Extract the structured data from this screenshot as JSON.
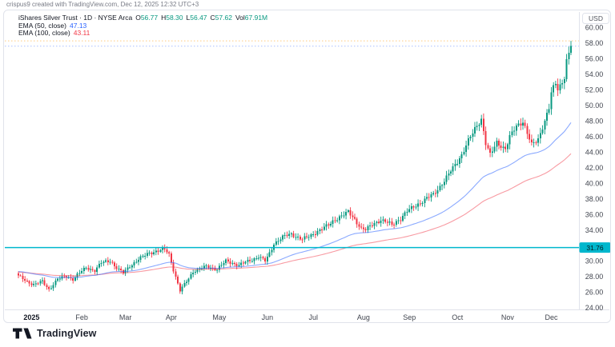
{
  "attribution": "crispus9 created with TradingView.com, Dec 12, 2025 12:32 UTC+3",
  "legend": {
    "title": "iShares Silver Trust · 1D · NYSE Arca",
    "ohlc": [
      {
        "k": "O",
        "v": "56.77"
      },
      {
        "k": "H",
        "v": "58.30"
      },
      {
        "k": "L",
        "v": "56.47"
      },
      {
        "k": "C",
        "v": "57.62"
      },
      {
        "k": "Vol",
        "v": "67.91M"
      }
    ],
    "ema50_label": "EMA (50, close)",
    "ema50_value": "47.13",
    "ema100_label": "EMA (100, close)",
    "ema100_value": "43.11"
  },
  "axis": {
    "currency": "USD",
    "level_tag": "31.76"
  },
  "time_axis": {
    "labels": [
      "2025",
      "Feb",
      "Mar",
      "Apr",
      "May",
      "Jun",
      "Jul",
      "Aug",
      "Sep",
      "Oct",
      "Nov",
      "Dec"
    ]
  },
  "footer": {
    "brand": "TradingView"
  },
  "colors": {
    "up": "#089981",
    "down": "#f23645",
    "ema50": "#2962ff",
    "ema100": "#f23645",
    "level": "#00b7cd",
    "level_text": "#07171b",
    "axis_text": "#41454f",
    "year_text": "#131722",
    "border": "#e0e3eb",
    "close_line": "#2962ff",
    "high_line": "#ff9800"
  },
  "chart_data": {
    "type": "candlestick",
    "symbol": "iShares Silver Trust",
    "interval": "1D",
    "exchange": "NYSE Arca",
    "ylabel": "USD",
    "ylim": [
      24,
      60
    ],
    "y_ticks": [
      60,
      58,
      56,
      54,
      52,
      50,
      48,
      46,
      44,
      42,
      40,
      38,
      36,
      34,
      30,
      28,
      26,
      24
    ],
    "grid": false,
    "level_line": 31.76,
    "close_price_line": 57.62,
    "high_price_line": 58.3,
    "last_ohlc": {
      "open": 56.77,
      "high": 58.3,
      "low": 56.47,
      "close": 57.62
    },
    "volume": "67.91M",
    "ema50_last": 47.13,
    "ema100_last": 43.11,
    "ema_seed": {
      "ema50": 28.7,
      "ema100": 28.6
    },
    "date_range": [
      "2024-12-24",
      "2025-12-12"
    ],
    "anchors": [
      [
        "2024-12-24",
        28.1
      ],
      [
        "2024-12-30",
        27.4
      ],
      [
        "2025-01-02",
        27.0
      ],
      [
        "2025-01-08",
        27.4
      ],
      [
        "2025-01-13",
        26.4
      ],
      [
        "2025-01-17",
        27.7
      ],
      [
        "2025-01-23",
        28.1
      ],
      [
        "2025-01-28",
        27.7
      ],
      [
        "2025-01-31",
        28.5
      ],
      [
        "2025-02-05",
        29.2
      ],
      [
        "2025-02-11",
        28.8
      ],
      [
        "2025-02-14",
        29.8
      ],
      [
        "2025-02-20",
        30.1
      ],
      [
        "2025-02-25",
        29.1
      ],
      [
        "2025-02-28",
        28.5
      ],
      [
        "2025-03-05",
        29.4
      ],
      [
        "2025-03-12",
        30.4
      ],
      [
        "2025-03-18",
        31.1
      ],
      [
        "2025-03-27",
        31.5
      ],
      [
        "2025-03-31",
        30.9
      ],
      [
        "2025-04-02",
        28.9
      ],
      [
        "2025-04-07",
        26.2
      ],
      [
        "2025-04-10",
        27.4
      ],
      [
        "2025-04-15",
        28.7
      ],
      [
        "2025-04-23",
        29.3
      ],
      [
        "2025-04-30",
        29.0
      ],
      [
        "2025-05-06",
        30.0
      ],
      [
        "2025-05-14",
        29.5
      ],
      [
        "2025-05-21",
        30.1
      ],
      [
        "2025-05-27",
        30.6
      ],
      [
        "2025-05-30",
        30.0
      ],
      [
        "2025-06-03",
        31.0
      ],
      [
        "2025-06-05",
        32.3
      ],
      [
        "2025-06-11",
        33.1
      ],
      [
        "2025-06-17",
        33.5
      ],
      [
        "2025-06-24",
        32.8
      ],
      [
        "2025-06-30",
        33.3
      ],
      [
        "2025-07-03",
        33.9
      ],
      [
        "2025-07-10",
        34.6
      ],
      [
        "2025-07-15",
        35.4
      ],
      [
        "2025-07-23",
        36.3
      ],
      [
        "2025-07-28",
        35.4
      ],
      [
        "2025-07-31",
        34.2
      ],
      [
        "2025-08-04",
        34.0
      ],
      [
        "2025-08-08",
        34.9
      ],
      [
        "2025-08-13",
        35.3
      ],
      [
        "2025-08-20",
        34.7
      ],
      [
        "2025-08-26",
        35.5
      ],
      [
        "2025-08-29",
        36.4
      ],
      [
        "2025-09-03",
        37.0
      ],
      [
        "2025-09-09",
        37.7
      ],
      [
        "2025-09-16",
        38.6
      ],
      [
        "2025-09-23",
        40.3
      ],
      [
        "2025-09-29",
        42.0
      ],
      [
        "2025-10-03",
        43.7
      ],
      [
        "2025-10-08",
        45.4
      ],
      [
        "2025-10-14",
        47.5
      ],
      [
        "2025-10-16",
        48.3
      ],
      [
        "2025-10-20",
        45.1
      ],
      [
        "2025-10-22",
        43.6
      ],
      [
        "2025-10-27",
        45.3
      ],
      [
        "2025-10-31",
        44.4
      ],
      [
        "2025-11-04",
        45.9
      ],
      [
        "2025-11-07",
        47.4
      ],
      [
        "2025-11-12",
        48.0
      ],
      [
        "2025-11-14",
        46.4
      ],
      [
        "2025-11-18",
        44.9
      ],
      [
        "2025-11-21",
        45.7
      ],
      [
        "2025-11-25",
        47.3
      ],
      [
        "2025-11-28",
        49.6
      ],
      [
        "2025-12-01",
        51.6
      ],
      [
        "2025-12-03",
        52.8
      ],
      [
        "2025-12-04",
        52.2
      ],
      [
        "2025-12-08",
        53.0
      ],
      [
        "2025-12-09",
        53.8
      ],
      [
        "2025-12-10",
        55.8
      ],
      [
        "2025-12-11",
        56.5
      ],
      [
        "2025-12-12",
        57.62
      ]
    ]
  }
}
